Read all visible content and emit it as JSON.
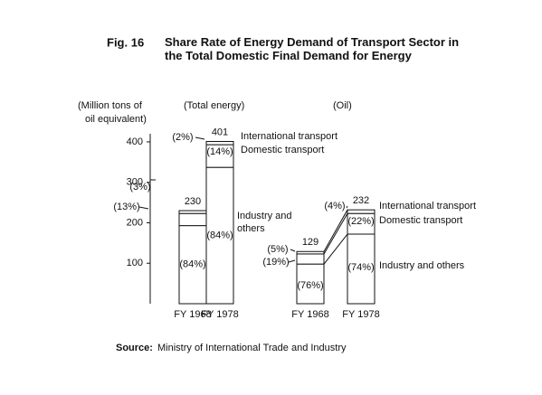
{
  "chart_data": {
    "type": "stacked-bar",
    "figure_label": "Fig. 16",
    "title": "Share Rate of Energy Demand of Transport Sector in the Total Domestic Final Demand for Energy",
    "y_label": [
      "(Million tons of",
      "oil equivalent)"
    ],
    "ylim": [
      0,
      420
    ],
    "yticks": [
      100,
      200,
      300,
      400
    ],
    "color": "#ffffff",
    "panels": [
      {
        "name": "(Total energy)",
        "categories": [
          "FY 1968",
          "FY 1978"
        ],
        "totals": [
          230,
          401
        ],
        "series": [
          {
            "name": "Industry and others",
            "values": [
              193,
              337
            ],
            "percent_labels": [
              "(84%)",
              "(84%)"
            ]
          },
          {
            "name": "Domestic transport",
            "values": [
              30,
              56
            ],
            "percent_labels": [
              "(13%)",
              "(14%)"
            ]
          },
          {
            "name": "International transport",
            "values": [
              7,
              8
            ],
            "percent_labels": [
              "(3%)",
              "(2%)"
            ]
          }
        ]
      },
      {
        "name": "(Oil)",
        "categories": [
          "FY 1968",
          "FY 1978"
        ],
        "totals": [
          129,
          232
        ],
        "series": [
          {
            "name": "Industry and others",
            "values": [
              98,
              172
            ],
            "percent_labels": [
              "(76%)",
              "(74%)"
            ]
          },
          {
            "name": "Domestic transport",
            "values": [
              25,
              51
            ],
            "percent_labels": [
              "(19%)",
              "(22%)"
            ]
          },
          {
            "name": "International transport",
            "values": [
              6,
              9
            ],
            "percent_labels": [
              "(5%)",
              "(4%)"
            ]
          }
        ]
      }
    ],
    "source_label": "Source:",
    "source": "Ministry of International Trade and Industry"
  }
}
